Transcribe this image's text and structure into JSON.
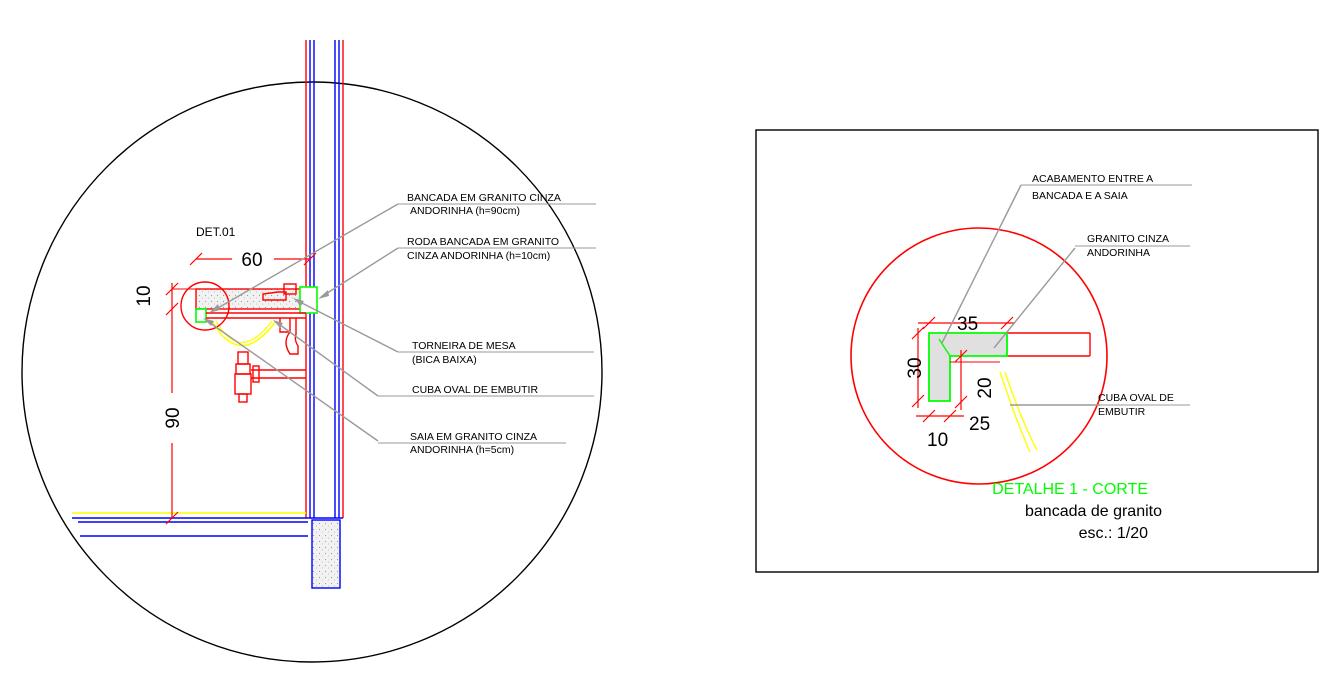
{
  "main_view": {
    "det_label": "DET.01",
    "dim_width": "60",
    "dim_top": "10",
    "dim_height": "90",
    "callouts": [
      {
        "line1": "BANCADA EM GRANITO CINZA",
        "line2": "ANDORINHA (h=90cm)"
      },
      {
        "line1": "RODA BANCADA EM GRANITO",
        "line2": "CINZA ANDORINHA (h=10cm)"
      },
      {
        "line1": "TORNEIRA DE MESA",
        "line2": "(BICA BAIXA)"
      },
      {
        "line1": "CUBA OVAL DE EMBUTIR",
        "line2": ""
      },
      {
        "line1": "SAIA EM GRANITO CINZA",
        "line2": "ANDORINHA (h=5cm)"
      }
    ]
  },
  "detail_view": {
    "callouts": [
      {
        "line1": "ACABAMENTO ENTRE A",
        "line2": "BANCADA E A SAIA"
      },
      {
        "line1": "GRANITO CINZA",
        "line2": "ANDORINHA"
      },
      {
        "line1": "CUBA OVAL DE",
        "line2": "EMBUTIR"
      }
    ],
    "dims": {
      "d35": "35",
      "d30": "30",
      "d20": "20",
      "d25": "25",
      "d10": "10"
    },
    "title": "DETALHE 1 - CORTE",
    "subtitle": "bancada de granito",
    "scale": "esc.: 1/20"
  },
  "colors": {
    "background": "#ffffff",
    "wall": "#0000ff",
    "outline": "#ff0000",
    "granite": "#00ff00",
    "basin": "#ffff00",
    "leader": "#9a9a9a",
    "title_accent": "#00ff00"
  }
}
